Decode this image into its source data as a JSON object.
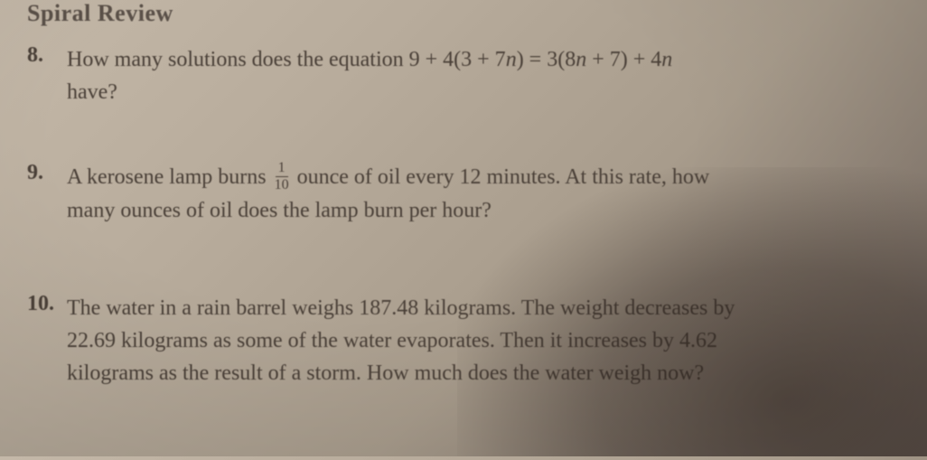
{
  "header": "Spiral Review",
  "problems": [
    {
      "number": "8.",
      "line1_a": "How many solutions does the equation 9 + 4(3 + 7",
      "line1_b": ") = 3(8",
      "line1_c": " + 7) + 4",
      "line2": "have?",
      "var": "n"
    },
    {
      "number": "9.",
      "line1_a": "A kerosene lamp burns ",
      "frac_top": "1",
      "frac_bot": "10",
      "line1_b": " ounce of oil every 12 minutes. At this rate, how",
      "line2": "many ounces of oil does the lamp burn per hour?"
    },
    {
      "number": "10.",
      "line1": "The water in a rain barrel weighs 187.48 kilograms. The weight decreases by",
      "line2": "22.69 kilograms as some of the water evaporates. Then it increases by 4.62",
      "line3": "kilograms as the result of a storm. How much does the water weigh now?"
    }
  ]
}
